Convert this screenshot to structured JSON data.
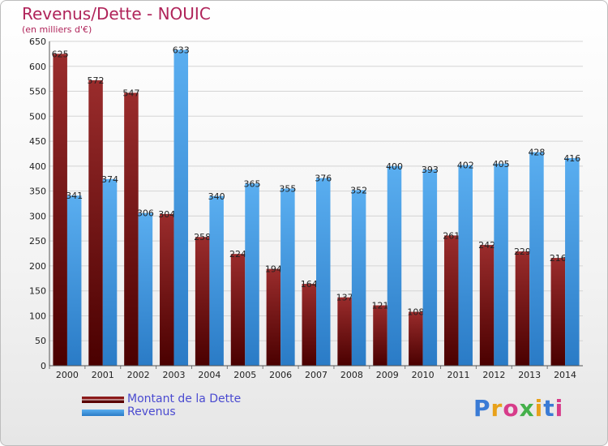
{
  "chart_data": {
    "type": "bar",
    "title": "Revenus/Dette - NOUIC",
    "subtitle": "(en milliers d'€)",
    "categories": [
      "2000",
      "2001",
      "2002",
      "2003",
      "2004",
      "2005",
      "2006",
      "2007",
      "2008",
      "2009",
      "2010",
      "2011",
      "2012",
      "2013",
      "2014"
    ],
    "series": [
      {
        "name": "Montant de la Dette",
        "color": "#8b1a1a",
        "values": [
          625,
          572,
          547,
          304,
          258,
          224,
          194,
          164,
          137,
          121,
          108,
          261,
          242,
          229,
          216
        ]
      },
      {
        "name": "Revenus",
        "color": "#4ea3e6",
        "values": [
          341,
          374,
          306,
          633,
          340,
          365,
          355,
          376,
          352,
          400,
          393,
          402,
          405,
          428,
          416
        ]
      }
    ],
    "ylim": [
      0,
      650
    ],
    "yticks": [
      0,
      50,
      100,
      150,
      200,
      250,
      300,
      350,
      400,
      450,
      500,
      550,
      600,
      650
    ],
    "grid": true,
    "legend": "bottom-left"
  },
  "logo": {
    "text": "Proxiti"
  }
}
